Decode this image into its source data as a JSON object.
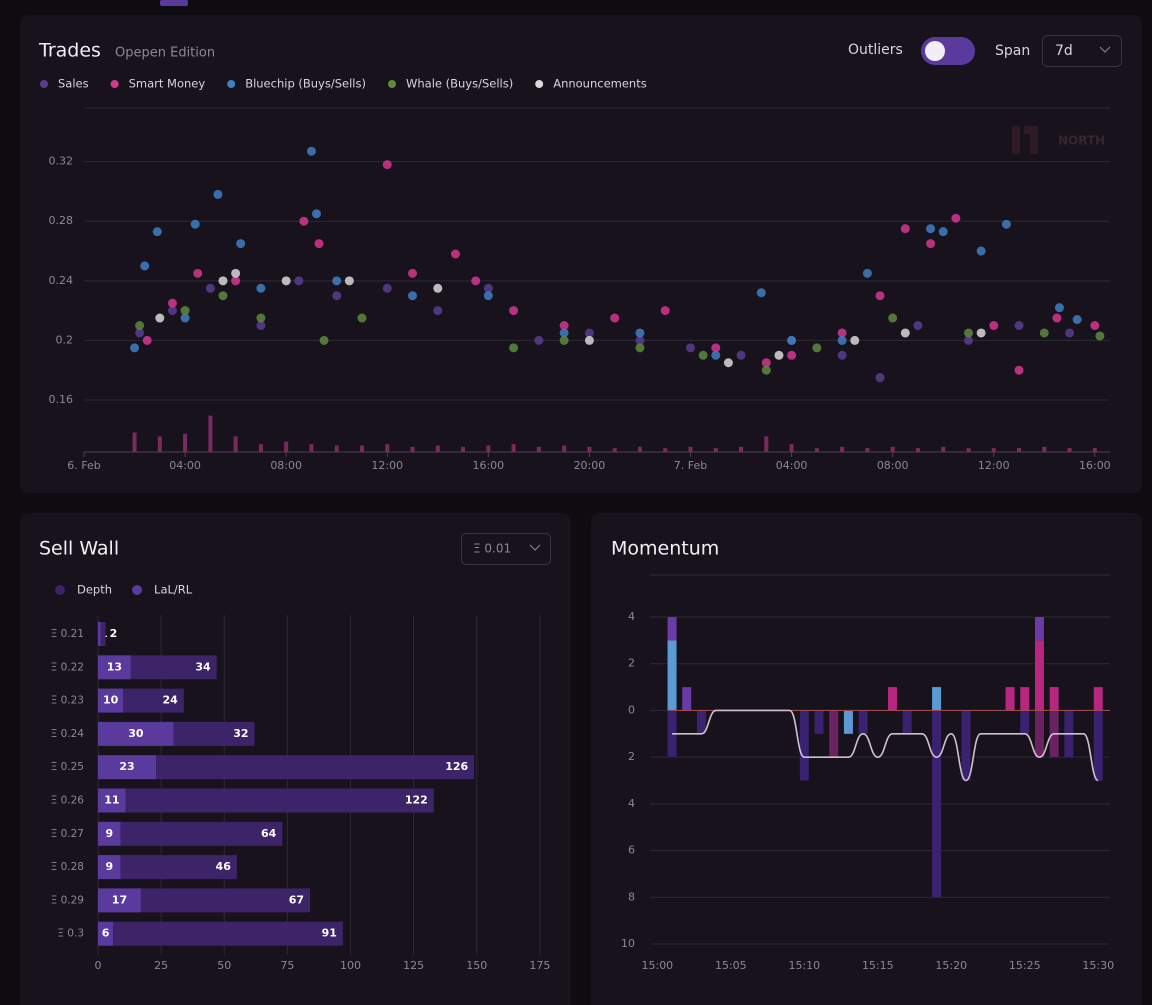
{
  "controls": {
    "outliers": "Outliers",
    "span": "Span",
    "span_value": "7d",
    "step_value": "Ξ 0.01",
    "watermark": "NORTH"
  },
  "chart_data": [
    {
      "type": "scatter",
      "title": "Trades",
      "subtitle": "Opepen Edition",
      "xlim": [
        0,
        40.6
      ],
      "ylim": [
        0.16,
        0.356
      ],
      "xticks": [
        {
          "value": 0,
          "label": "6. Feb"
        },
        {
          "value": 4,
          "label": "04:00"
        },
        {
          "value": 8,
          "label": "08:00"
        },
        {
          "value": 12,
          "label": "12:00"
        },
        {
          "value": 16,
          "label": "16:00"
        },
        {
          "value": 20,
          "label": "20:00"
        },
        {
          "value": 24,
          "label": "7. Feb"
        },
        {
          "value": 28,
          "label": "04:00"
        },
        {
          "value": 32,
          "label": "08:00"
        },
        {
          "value": 36,
          "label": "12:00"
        },
        {
          "value": 40,
          "label": "16:00"
        }
      ],
      "yticks": [
        0.16,
        0.2,
        0.24,
        0.28,
        0.32
      ],
      "grid": true,
      "series": [
        {
          "name": "Sales",
          "color": "#5a3d8f",
          "x": [
            2.2,
            3.5,
            5,
            7,
            8.5,
            10,
            12,
            14,
            16,
            18,
            20,
            22,
            24,
            26,
            28,
            30,
            31.5,
            33,
            35,
            37,
            39
          ],
          "values": [
            0.205,
            0.22,
            0.235,
            0.21,
            0.24,
            0.23,
            0.235,
            0.22,
            0.235,
            0.2,
            0.205,
            0.2,
            0.195,
            0.19,
            0.2,
            0.19,
            0.175,
            0.21,
            0.2,
            0.21,
            0.205
          ]
        },
        {
          "name": "Smart Money",
          "color": "#d6368f",
          "x": [
            2.5,
            3.5,
            4.5,
            6,
            8.7,
            9.3,
            12,
            13,
            14.7,
            15.5,
            17,
            19,
            21,
            23,
            25,
            27,
            28,
            30,
            31.5,
            32.5,
            33.5,
            34.5,
            36,
            37,
            38.5,
            40
          ],
          "values": [
            0.2,
            0.225,
            0.245,
            0.24,
            0.28,
            0.265,
            0.318,
            0.245,
            0.258,
            0.24,
            0.22,
            0.21,
            0.215,
            0.22,
            0.195,
            0.185,
            0.19,
            0.205,
            0.23,
            0.275,
            0.265,
            0.282,
            0.21,
            0.18,
            0.215,
            0.21
          ]
        },
        {
          "name": "Bluechip (Buys/Sells)",
          "color": "#3f7fc4",
          "x": [
            2,
            2.4,
            2.9,
            4,
            4.4,
            5.3,
            6.2,
            7,
            9,
            9.2,
            10,
            13,
            16,
            19,
            22,
            25,
            26.8,
            28,
            30,
            31,
            33.5,
            34,
            35.5,
            36.5,
            38.6,
            39.3
          ],
          "values": [
            0.195,
            0.25,
            0.273,
            0.215,
            0.278,
            0.298,
            0.265,
            0.235,
            0.327,
            0.285,
            0.24,
            0.23,
            0.23,
            0.205,
            0.205,
            0.19,
            0.232,
            0.2,
            0.2,
            0.245,
            0.275,
            0.273,
            0.26,
            0.278,
            0.222,
            0.214
          ]
        },
        {
          "name": "Whale (Buys/Sells)",
          "color": "#5d8a3e",
          "x": [
            2.2,
            4,
            5.5,
            7,
            9.5,
            11,
            17,
            19,
            22,
            24.5,
            27,
            29,
            32,
            35,
            38,
            40.2
          ],
          "values": [
            0.21,
            0.22,
            0.23,
            0.215,
            0.2,
            0.215,
            0.195,
            0.2,
            0.195,
            0.19,
            0.18,
            0.195,
            0.215,
            0.205,
            0.205,
            0.203
          ]
        },
        {
          "name": "Announcements",
          "color": "#d8d8d8",
          "x": [
            3,
            5.5,
            6,
            8,
            10.5,
            14,
            20,
            25.5,
            27.5,
            30.5,
            32.5,
            35.5
          ],
          "values": [
            0.215,
            0.24,
            0.245,
            0.24,
            0.24,
            0.235,
            0.2,
            0.185,
            0.19,
            0.2,
            0.205,
            0.205
          ]
        }
      ],
      "volume": {
        "color": "#7a2a5e",
        "ylim": [
          0,
          40
        ],
        "x": [
          2,
          3,
          4,
          5,
          6,
          7,
          8,
          9,
          10,
          11,
          12,
          13,
          14,
          15,
          16,
          17,
          18,
          19,
          20,
          21,
          22,
          23,
          24,
          25,
          26,
          27,
          28,
          29,
          30,
          31,
          32,
          33,
          34,
          35,
          36,
          37,
          38,
          39,
          40
        ],
        "values": [
          15,
          12,
          14,
          28,
          12,
          6,
          8,
          6,
          5,
          5,
          6,
          4,
          5,
          4,
          5,
          6,
          4,
          5,
          4,
          3,
          4,
          3,
          4,
          3,
          4,
          12,
          6,
          3,
          4,
          3,
          4,
          3,
          4,
          3,
          3,
          3,
          4,
          3,
          3
        ]
      }
    },
    {
      "type": "hbar",
      "title": "Sell Wall",
      "categories": [
        "Ξ 0.21",
        "Ξ 0.22",
        "Ξ 0.23",
        "Ξ 0.24",
        "Ξ 0.25",
        "Ξ 0.26",
        "Ξ 0.27",
        "Ξ 0.28",
        "Ξ 0.29",
        "Ξ 0.3"
      ],
      "series": [
        {
          "name": "Depth",
          "color": "#3d2468",
          "values": [
            2,
            34,
            24,
            32,
            126,
            122,
            64,
            46,
            67,
            91
          ]
        },
        {
          "name": "LaL/RL",
          "color": "#5b3a9e",
          "values": [
            1,
            13,
            10,
            30,
            23,
            11,
            9,
            9,
            17,
            6
          ]
        }
      ],
      "xlim": [
        0,
        181
      ],
      "xticks": [
        0,
        25,
        50,
        75,
        100,
        125,
        150,
        175
      ],
      "grid": true
    },
    {
      "type": "momentum",
      "title": "Momentum",
      "xlim": [
        -0.5,
        30.8
      ],
      "ylim": [
        -10,
        5.8
      ],
      "xticks": [
        {
          "value": 0,
          "label": "15:00"
        },
        {
          "value": 5,
          "label": "15:05"
        },
        {
          "value": 10,
          "label": "15:10"
        },
        {
          "value": 15,
          "label": "15:15"
        },
        {
          "value": 20,
          "label": "15:20"
        },
        {
          "value": 25,
          "label": "15:25"
        },
        {
          "value": 30,
          "label": "15:30"
        }
      ],
      "yticks": [
        4,
        2,
        0,
        {
          "value": -2,
          "label": "2"
        },
        {
          "value": -4,
          "label": "4"
        },
        {
          "value": -6,
          "label": "6"
        },
        {
          "value": -8,
          "label": "8"
        },
        {
          "value": -10,
          "label": "10"
        }
      ],
      "grid": true,
      "series": [
        {
          "color": "#5b9bd5",
          "values": [
            0,
            3,
            0,
            0,
            0,
            0,
            0,
            0,
            0,
            0,
            0,
            0,
            0,
            -1,
            0,
            0,
            0,
            0,
            0,
            1,
            0,
            0,
            0,
            0,
            0,
            0,
            0,
            0,
            0,
            0,
            0
          ]
        },
        {
          "color": "#b8277f",
          "values": [
            0,
            0,
            0,
            0,
            0,
            0,
            0,
            0,
            0,
            0,
            0,
            0,
            0,
            0,
            0,
            0,
            1,
            0,
            0,
            0,
            0,
            0,
            0,
            0,
            1,
            1,
            3,
            1,
            0,
            0,
            1
          ]
        },
        {
          "color": "#6a3aa6",
          "values": [
            0,
            1,
            1,
            0,
            0,
            0,
            0,
            0,
            0,
            0,
            0,
            0,
            0,
            0,
            0,
            0,
            0,
            0,
            0,
            0,
            0,
            0,
            0,
            0,
            0,
            0,
            1,
            0,
            0,
            0,
            0
          ]
        },
        {
          "color": "#3a2270",
          "values": [
            0,
            -2,
            0,
            -1,
            0,
            0,
            0,
            0,
            0,
            0,
            -3,
            -1,
            0,
            0,
            -1,
            0,
            0,
            -1,
            0,
            -8,
            0,
            -3,
            0,
            0,
            0,
            -1,
            0,
            0,
            -2,
            0,
            -3
          ]
        },
        {
          "color": "#6a2262",
          "values": [
            0,
            0,
            0,
            0,
            0,
            0,
            0,
            0,
            0,
            0,
            0,
            0,
            -2,
            0,
            0,
            0,
            0,
            0,
            0,
            0,
            0,
            0,
            0,
            0,
            0,
            0,
            -2,
            -2,
            0,
            0,
            0
          ]
        }
      ],
      "line": {
        "color": "#cfc2cc",
        "values": [
          null,
          -1,
          -1,
          -1,
          0,
          0,
          0,
          0,
          0,
          0,
          -2,
          -2,
          -2,
          -2,
          -1,
          -2,
          -1,
          -1,
          -1,
          -2,
          -1,
          -3,
          -1,
          -1,
          -1,
          -1,
          -2,
          -1,
          -1,
          -1,
          -3
        ]
      }
    }
  ]
}
